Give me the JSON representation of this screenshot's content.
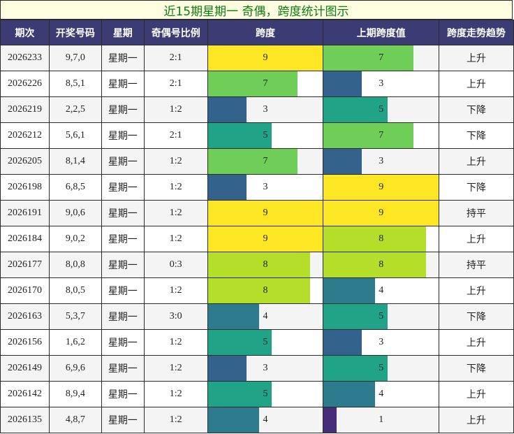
{
  "title": "近15期星期一 奇偶，跨度统计图示",
  "headers": [
    "期次",
    "开奖号码",
    "星期",
    "奇偶号比例",
    "跨度",
    "上期跨度值",
    "跨度走势趋势"
  ],
  "chart_data": {
    "type": "table",
    "max_span": 9,
    "colors": {
      "1": "#472c7a",
      "3": "#33638d",
      "4": "#2c7c8d",
      "5": "#21a387",
      "7": "#6ece58",
      "8": "#b5de2b",
      "9": "#fde725"
    },
    "rows": [
      {
        "period": "2026233",
        "numbers": "9,7,0",
        "weekday": "星期一",
        "ratio": "2:1",
        "span": 9,
        "prev_span": 7,
        "trend": "上升"
      },
      {
        "period": "2026226",
        "numbers": "8,5,1",
        "weekday": "星期一",
        "ratio": "2:1",
        "span": 7,
        "prev_span": 3,
        "trend": "上升"
      },
      {
        "period": "2026219",
        "numbers": "2,2,5",
        "weekday": "星期一",
        "ratio": "1:2",
        "span": 3,
        "prev_span": 5,
        "trend": "下降"
      },
      {
        "period": "2026212",
        "numbers": "5,6,1",
        "weekday": "星期一",
        "ratio": "2:1",
        "span": 5,
        "prev_span": 7,
        "trend": "下降"
      },
      {
        "period": "2026205",
        "numbers": "8,1,4",
        "weekday": "星期一",
        "ratio": "1:2",
        "span": 7,
        "prev_span": 3,
        "trend": "上升"
      },
      {
        "period": "2026198",
        "numbers": "6,8,5",
        "weekday": "星期一",
        "ratio": "1:2",
        "span": 3,
        "prev_span": 9,
        "trend": "下降"
      },
      {
        "period": "2026191",
        "numbers": "9,0,6",
        "weekday": "星期一",
        "ratio": "1:2",
        "span": 9,
        "prev_span": 9,
        "trend": "持平"
      },
      {
        "period": "2026184",
        "numbers": "9,0,2",
        "weekday": "星期一",
        "ratio": "1:2",
        "span": 9,
        "prev_span": 8,
        "trend": "上升"
      },
      {
        "period": "2026177",
        "numbers": "8,0,8",
        "weekday": "星期一",
        "ratio": "0:3",
        "span": 8,
        "prev_span": 8,
        "trend": "持平"
      },
      {
        "period": "2026170",
        "numbers": "8,0,5",
        "weekday": "星期一",
        "ratio": "1:2",
        "span": 8,
        "prev_span": 4,
        "trend": "上升"
      },
      {
        "period": "2026163",
        "numbers": "5,3,7",
        "weekday": "星期一",
        "ratio": "3:0",
        "span": 4,
        "prev_span": 5,
        "trend": "下降"
      },
      {
        "period": "2026156",
        "numbers": "1,6,2",
        "weekday": "星期一",
        "ratio": "1:2",
        "span": 5,
        "prev_span": 3,
        "trend": "上升"
      },
      {
        "period": "2026149",
        "numbers": "6,9,6",
        "weekday": "星期一",
        "ratio": "1:2",
        "span": 3,
        "prev_span": 5,
        "trend": "下降"
      },
      {
        "period": "2026142",
        "numbers": "8,9,4",
        "weekday": "星期一",
        "ratio": "1:2",
        "span": 5,
        "prev_span": 4,
        "trend": "上升"
      },
      {
        "period": "2026135",
        "numbers": "4,8,7",
        "weekday": "星期一",
        "ratio": "1:2",
        "span": 4,
        "prev_span": 1,
        "trend": "上升"
      }
    ]
  }
}
